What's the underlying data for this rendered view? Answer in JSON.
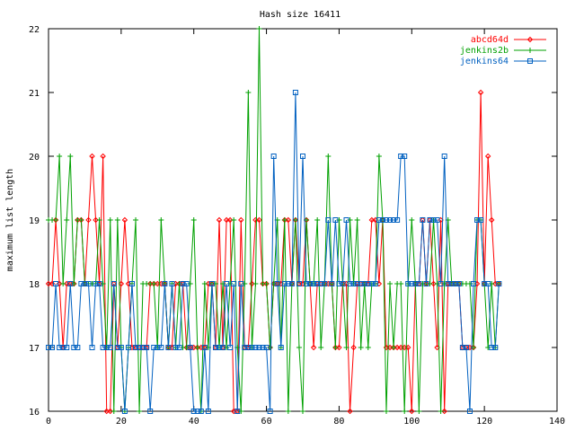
{
  "chart_data": {
    "type": "line",
    "title": "Hash size 16411",
    "xlabel": "",
    "ylabel": "maximum list length",
    "xlim": [
      0,
      140
    ],
    "ylim": [
      16,
      22
    ],
    "xticks": [
      0,
      20,
      40,
      60,
      80,
      100,
      120,
      140
    ],
    "yticks": [
      16,
      17,
      18,
      19,
      20,
      21,
      22
    ],
    "grid": false,
    "legend": "top-right",
    "series": [
      {
        "name": "abcd64d",
        "color": "#ff0000",
        "marker": "diamond",
        "x": [
          0,
          1,
          2,
          3,
          4,
          5,
          6,
          7,
          8,
          9,
          10,
          11,
          12,
          13,
          14,
          15,
          16,
          17,
          18,
          19,
          20,
          21,
          22,
          23,
          24,
          25,
          26,
          27,
          28,
          29,
          30,
          31,
          32,
          33,
          34,
          35,
          36,
          37,
          38,
          39,
          40,
          41,
          42,
          43,
          44,
          45,
          46,
          47,
          48,
          49,
          50,
          51,
          52,
          53,
          54,
          55,
          56,
          57,
          58,
          59,
          60,
          61,
          62,
          63,
          64,
          65,
          66,
          67,
          68,
          69,
          70,
          71,
          72,
          73,
          74,
          75,
          76,
          77,
          78,
          79,
          80,
          81,
          82,
          83,
          84,
          85,
          86,
          87,
          88,
          89,
          90,
          91,
          92,
          93,
          94,
          95,
          96,
          97,
          98,
          99,
          100,
          101,
          102,
          103,
          104,
          105,
          106,
          107,
          108,
          109,
          110,
          111,
          112,
          113,
          114,
          115,
          116,
          117,
          118,
          119,
          120,
          121,
          122,
          123,
          124
        ],
        "values": [
          18,
          18,
          19,
          18,
          17,
          18,
          18,
          18,
          19,
          19,
          18,
          19,
          20,
          19,
          18,
          20,
          16,
          16,
          18,
          17,
          18,
          19,
          18,
          17,
          17,
          17,
          17,
          17,
          18,
          18,
          18,
          18,
          18,
          17,
          17,
          18,
          18,
          18,
          17,
          17,
          17,
          17,
          17,
          17,
          18,
          18,
          17,
          19,
          17,
          19,
          19,
          16,
          16,
          19,
          17,
          17,
          18,
          19,
          19,
          18,
          18,
          17,
          18,
          18,
          18,
          19,
          19,
          18,
          19,
          18,
          18,
          19,
          18,
          17,
          18,
          18,
          18,
          18,
          18,
          17,
          17,
          18,
          18,
          16,
          17,
          18,
          18,
          18,
          18,
          19,
          19,
          18,
          19,
          17,
          17,
          17,
          17,
          17,
          17,
          17,
          16,
          18,
          18,
          19,
          18,
          19,
          18,
          17,
          19,
          16,
          18,
          18,
          18,
          18,
          17,
          17,
          17,
          17,
          18,
          21,
          18,
          20,
          19,
          18,
          18
        ]
      },
      {
        "name": "jenkins2b",
        "color": "#00a000",
        "marker": "plus",
        "x": [
          0,
          1,
          2,
          3,
          4,
          5,
          6,
          7,
          8,
          9,
          10,
          11,
          12,
          13,
          14,
          15,
          16,
          17,
          18,
          19,
          20,
          21,
          22,
          23,
          24,
          25,
          26,
          27,
          28,
          29,
          30,
          31,
          32,
          33,
          34,
          35,
          36,
          37,
          38,
          39,
          40,
          41,
          42,
          43,
          44,
          45,
          46,
          47,
          48,
          49,
          50,
          51,
          52,
          53,
          54,
          55,
          56,
          57,
          58,
          59,
          60,
          61,
          62,
          63,
          64,
          65,
          66,
          67,
          68,
          69,
          70,
          71,
          72,
          73,
          74,
          75,
          76,
          77,
          78,
          79,
          80,
          81,
          82,
          83,
          84,
          85,
          86,
          87,
          88,
          89,
          90,
          91,
          92,
          93,
          94,
          95,
          96,
          97,
          98,
          99,
          100,
          101,
          102,
          103,
          104,
          105,
          106,
          107,
          108,
          109,
          110,
          111,
          112,
          113,
          114,
          115,
          116,
          117,
          118,
          119,
          120,
          121,
          122,
          123,
          124
        ],
        "values": [
          19,
          19,
          19,
          20,
          18,
          19,
          20,
          18,
          19,
          19,
          18,
          18,
          18,
          18,
          19,
          18,
          17,
          19,
          16,
          19,
          17,
          16,
          17,
          18,
          19,
          16,
          18,
          18,
          18,
          18,
          17,
          19,
          18,
          17,
          18,
          17,
          18,
          17,
          17,
          18,
          19,
          17,
          16,
          18,
          17,
          18,
          18,
          17,
          18,
          17,
          18,
          19,
          17,
          16,
          18,
          21,
          17,
          18,
          22,
          18,
          18,
          17,
          18,
          19,
          17,
          19,
          16,
          18,
          19,
          17,
          16,
          19,
          18,
          18,
          19,
          17,
          18,
          20,
          18,
          17,
          19,
          18,
          17,
          19,
          18,
          19,
          17,
          18,
          17,
          18,
          18,
          20,
          19,
          16,
          18,
          17,
          18,
          18,
          16,
          18,
          19,
          18,
          16,
          18,
          18,
          18,
          19,
          18,
          16,
          18,
          19,
          18,
          18,
          18,
          18,
          18,
          18,
          17,
          19,
          19,
          18,
          17,
          18,
          17,
          18
        ]
      },
      {
        "name": "jenkins64",
        "color": "#0060c0",
        "marker": "square",
        "x": [
          0,
          1,
          2,
          3,
          4,
          5,
          6,
          7,
          8,
          9,
          10,
          11,
          12,
          13,
          14,
          15,
          16,
          17,
          18,
          19,
          20,
          21,
          22,
          23,
          24,
          25,
          26,
          27,
          28,
          29,
          30,
          31,
          32,
          33,
          34,
          35,
          36,
          37,
          38,
          39,
          40,
          41,
          42,
          43,
          44,
          45,
          46,
          47,
          48,
          49,
          50,
          51,
          52,
          53,
          54,
          55,
          56,
          57,
          58,
          59,
          60,
          61,
          62,
          63,
          64,
          65,
          66,
          67,
          68,
          69,
          70,
          71,
          72,
          73,
          74,
          75,
          76,
          77,
          78,
          79,
          80,
          81,
          82,
          83,
          84,
          85,
          86,
          87,
          88,
          89,
          90,
          91,
          92,
          93,
          94,
          95,
          96,
          97,
          98,
          99,
          100,
          101,
          102,
          103,
          104,
          105,
          106,
          107,
          108,
          109,
          110,
          111,
          112,
          113,
          114,
          115,
          116,
          117,
          118,
          119,
          120,
          121,
          122,
          123,
          124
        ],
        "values": [
          17,
          17,
          18,
          17,
          17,
          17,
          18,
          17,
          17,
          18,
          18,
          18,
          17,
          18,
          18,
          17,
          17,
          17,
          18,
          17,
          17,
          16,
          17,
          18,
          17,
          17,
          17,
          17,
          16,
          17,
          17,
          17,
          18,
          17,
          18,
          17,
          17,
          18,
          18,
          17,
          16,
          16,
          16,
          17,
          16,
          18,
          17,
          17,
          17,
          18,
          17,
          18,
          16,
          18,
          17,
          17,
          17,
          17,
          17,
          17,
          17,
          16,
          20,
          18,
          17,
          18,
          18,
          18,
          21,
          18,
          20,
          18,
          18,
          18,
          18,
          18,
          18,
          19,
          18,
          19,
          18,
          18,
          19,
          18,
          18,
          18,
          18,
          18,
          18,
          18,
          18,
          19,
          19,
          19,
          19,
          19,
          19,
          20,
          20,
          18,
          18,
          18,
          18,
          19,
          18,
          19,
          19,
          19,
          18,
          20,
          18,
          18,
          18,
          18,
          17,
          17,
          16,
          18,
          19,
          19,
          18,
          18,
          17,
          17,
          18
        ]
      }
    ]
  }
}
